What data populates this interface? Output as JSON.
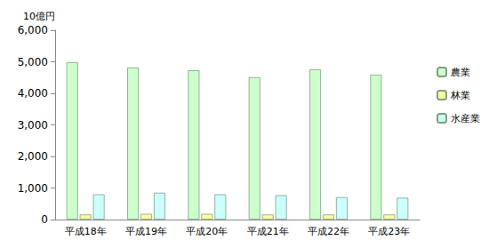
{
  "chart_data": {
    "type": "bar",
    "y_label": "10億円",
    "categories": [
      "平成18年",
      "平成19年",
      "平成20年",
      "平成21年",
      "平成22年",
      "平成23年"
    ],
    "series": [
      {
        "name": "農業",
        "color": "#ccffcc",
        "values": [
          4990,
          4820,
          4730,
          4510,
          4760,
          4590
        ]
      },
      {
        "name": "林業",
        "color": "#ffff99",
        "values": [
          160,
          180,
          180,
          160,
          160,
          160
        ]
      },
      {
        "name": "水産業",
        "color": "#ccffff",
        "values": [
          800,
          850,
          800,
          770,
          710,
          690
        ]
      }
    ],
    "ylim": [
      0,
      6000
    ],
    "yticks": [
      0,
      {
        "value": 1000,
        "label": "1,000"
      },
      {
        "value": 2000,
        "label": "2,000"
      },
      {
        "value": 3000,
        "label": "3,000"
      },
      {
        "value": 4000,
        "label": "4,000"
      },
      {
        "value": 5000,
        "label": "5,000"
      },
      {
        "value": 6000,
        "label": "6,000"
      }
    ],
    "grid": false,
    "legend": "right"
  }
}
